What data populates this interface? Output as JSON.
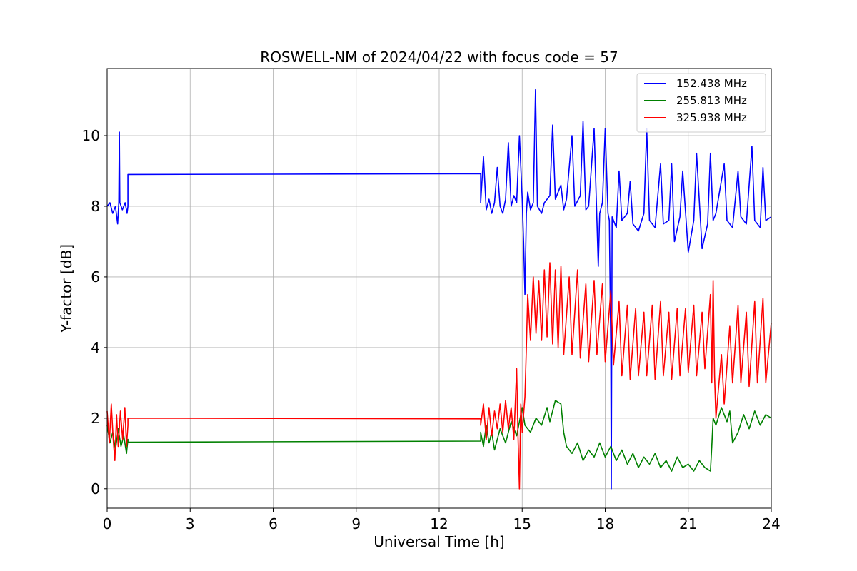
{
  "chart_data": {
    "type": "line",
    "title": "ROSWELL-NM of 2024/04/22 with focus code = 57",
    "xlabel": "Universal Time [h]",
    "ylabel": "Y-factor [dB]",
    "xlim": [
      0,
      24
    ],
    "ylim": [
      -0.55,
      11.9
    ],
    "xticks": [
      0,
      3,
      6,
      9,
      12,
      15,
      18,
      21,
      24
    ],
    "xtick_labels": [
      "0",
      "3",
      "6",
      "9",
      "12",
      "15",
      "18",
      "21",
      "24"
    ],
    "yticks": [
      0,
      2,
      4,
      6,
      8,
      10
    ],
    "ytick_labels": [
      "0",
      "2",
      "4",
      "6",
      "8",
      "10"
    ],
    "grid": true,
    "legend_position": "top-right",
    "series": [
      {
        "name": "152.438 MHz",
        "color": "#0000ff",
        "points": [
          [
            0.0,
            8.0
          ],
          [
            0.1,
            8.1
          ],
          [
            0.2,
            7.8
          ],
          [
            0.3,
            8.0
          ],
          [
            0.38,
            7.5
          ],
          [
            0.42,
            8.1
          ],
          [
            0.44,
            10.1
          ],
          [
            0.46,
            8.1
          ],
          [
            0.55,
            7.9
          ],
          [
            0.65,
            8.1
          ],
          [
            0.72,
            7.8
          ],
          [
            0.75,
            8.0
          ],
          [
            0.75,
            8.9
          ],
          [
            13.5,
            8.92
          ],
          [
            13.5,
            8.1
          ],
          [
            13.6,
            9.4
          ],
          [
            13.7,
            7.9
          ],
          [
            13.8,
            8.2
          ],
          [
            13.9,
            7.8
          ],
          [
            14.0,
            8.1
          ],
          [
            14.1,
            9.1
          ],
          [
            14.2,
            8.0
          ],
          [
            14.3,
            7.8
          ],
          [
            14.4,
            8.2
          ],
          [
            14.5,
            9.8
          ],
          [
            14.6,
            8.0
          ],
          [
            14.7,
            8.3
          ],
          [
            14.8,
            8.1
          ],
          [
            14.9,
            10.0
          ],
          [
            15.0,
            8.2
          ],
          [
            15.05,
            7.0
          ],
          [
            15.1,
            5.5
          ],
          [
            15.15,
            7.8
          ],
          [
            15.2,
            8.4
          ],
          [
            15.3,
            7.9
          ],
          [
            15.4,
            8.1
          ],
          [
            15.48,
            11.3
          ],
          [
            15.55,
            8.0
          ],
          [
            15.7,
            7.8
          ],
          [
            15.8,
            8.1
          ],
          [
            16.0,
            8.3
          ],
          [
            16.1,
            10.3
          ],
          [
            16.2,
            8.2
          ],
          [
            16.4,
            8.6
          ],
          [
            16.5,
            7.9
          ],
          [
            16.6,
            8.2
          ],
          [
            16.8,
            10.0
          ],
          [
            16.9,
            8.0
          ],
          [
            17.1,
            8.3
          ],
          [
            17.2,
            10.4
          ],
          [
            17.3,
            7.9
          ],
          [
            17.4,
            8.0
          ],
          [
            17.6,
            10.2
          ],
          [
            17.7,
            7.6
          ],
          [
            17.75,
            6.3
          ],
          [
            17.8,
            7.8
          ],
          [
            17.9,
            8.1
          ],
          [
            18.0,
            10.2
          ],
          [
            18.1,
            7.8
          ],
          [
            18.15,
            7.6
          ],
          [
            18.2,
            4.0
          ],
          [
            18.22,
            0.0
          ],
          [
            18.25,
            7.7
          ],
          [
            18.4,
            7.4
          ],
          [
            18.5,
            9.0
          ],
          [
            18.6,
            7.6
          ],
          [
            18.8,
            7.8
          ],
          [
            18.9,
            8.7
          ],
          [
            19.0,
            7.5
          ],
          [
            19.2,
            7.3
          ],
          [
            19.4,
            7.8
          ],
          [
            19.5,
            10.2
          ],
          [
            19.6,
            7.6
          ],
          [
            19.8,
            7.4
          ],
          [
            20.0,
            9.2
          ],
          [
            20.1,
            7.5
          ],
          [
            20.3,
            7.6
          ],
          [
            20.4,
            9.2
          ],
          [
            20.5,
            7.0
          ],
          [
            20.7,
            7.7
          ],
          [
            20.8,
            9.0
          ],
          [
            21.0,
            6.7
          ],
          [
            21.2,
            7.6
          ],
          [
            21.3,
            9.5
          ],
          [
            21.5,
            6.8
          ],
          [
            21.7,
            7.5
          ],
          [
            21.8,
            9.5
          ],
          [
            21.9,
            7.6
          ],
          [
            22.0,
            7.8
          ],
          [
            22.3,
            9.2
          ],
          [
            22.4,
            7.6
          ],
          [
            22.6,
            7.4
          ],
          [
            22.8,
            9.0
          ],
          [
            22.9,
            7.7
          ],
          [
            23.1,
            7.5
          ],
          [
            23.3,
            9.7
          ],
          [
            23.4,
            7.6
          ],
          [
            23.6,
            7.4
          ],
          [
            23.7,
            9.1
          ],
          [
            23.8,
            7.6
          ],
          [
            24.0,
            7.7
          ]
        ]
      },
      {
        "name": "255.813 MHz",
        "color": "#008000",
        "points": [
          [
            0.0,
            1.8
          ],
          [
            0.1,
            1.3
          ],
          [
            0.2,
            1.6
          ],
          [
            0.3,
            1.1
          ],
          [
            0.4,
            1.7
          ],
          [
            0.5,
            1.2
          ],
          [
            0.6,
            1.5
          ],
          [
            0.7,
            1.0
          ],
          [
            0.75,
            1.4
          ],
          [
            0.75,
            1.32
          ],
          [
            13.5,
            1.35
          ],
          [
            13.5,
            1.6
          ],
          [
            13.6,
            1.2
          ],
          [
            13.7,
            1.8
          ],
          [
            13.8,
            1.3
          ],
          [
            13.9,
            1.6
          ],
          [
            14.0,
            1.1
          ],
          [
            14.2,
            1.7
          ],
          [
            14.4,
            1.3
          ],
          [
            14.6,
            1.9
          ],
          [
            14.8,
            1.5
          ],
          [
            15.0,
            2.3
          ],
          [
            15.1,
            1.8
          ],
          [
            15.3,
            1.6
          ],
          [
            15.5,
            2.0
          ],
          [
            15.7,
            1.8
          ],
          [
            15.9,
            2.3
          ],
          [
            16.0,
            1.9
          ],
          [
            16.2,
            2.5
          ],
          [
            16.4,
            2.4
          ],
          [
            16.5,
            1.6
          ],
          [
            16.6,
            1.2
          ],
          [
            16.8,
            1.0
          ],
          [
            17.0,
            1.3
          ],
          [
            17.2,
            0.8
          ],
          [
            17.4,
            1.1
          ],
          [
            17.6,
            0.9
          ],
          [
            17.8,
            1.3
          ],
          [
            18.0,
            0.9
          ],
          [
            18.2,
            1.2
          ],
          [
            18.4,
            0.8
          ],
          [
            18.6,
            1.1
          ],
          [
            18.8,
            0.7
          ],
          [
            19.0,
            1.0
          ],
          [
            19.2,
            0.6
          ],
          [
            19.4,
            0.9
          ],
          [
            19.6,
            0.7
          ],
          [
            19.8,
            1.0
          ],
          [
            20.0,
            0.6
          ],
          [
            20.2,
            0.8
          ],
          [
            20.4,
            0.5
          ],
          [
            20.6,
            0.9
          ],
          [
            20.8,
            0.6
          ],
          [
            21.0,
            0.7
          ],
          [
            21.2,
            0.5
          ],
          [
            21.4,
            0.8
          ],
          [
            21.6,
            0.6
          ],
          [
            21.8,
            0.5
          ],
          [
            21.85,
            1.2
          ],
          [
            21.9,
            2.0
          ],
          [
            22.0,
            1.8
          ],
          [
            22.2,
            2.3
          ],
          [
            22.4,
            1.9
          ],
          [
            22.5,
            2.2
          ],
          [
            22.6,
            1.3
          ],
          [
            22.8,
            1.6
          ],
          [
            23.0,
            2.1
          ],
          [
            23.2,
            1.7
          ],
          [
            23.4,
            2.2
          ],
          [
            23.6,
            1.8
          ],
          [
            23.8,
            2.1
          ],
          [
            24.0,
            2.0
          ]
        ]
      },
      {
        "name": "325.938 MHz",
        "color": "#ff0000",
        "points": [
          [
            0.0,
            2.2
          ],
          [
            0.08,
            1.3
          ],
          [
            0.15,
            2.4
          ],
          [
            0.22,
            1.4
          ],
          [
            0.28,
            0.8
          ],
          [
            0.34,
            2.1
          ],
          [
            0.4,
            1.2
          ],
          [
            0.48,
            2.2
          ],
          [
            0.56,
            1.4
          ],
          [
            0.64,
            2.3
          ],
          [
            0.7,
            1.2
          ],
          [
            0.75,
            1.8
          ],
          [
            0.75,
            2.0
          ],
          [
            13.5,
            1.98
          ],
          [
            13.5,
            1.8
          ],
          [
            13.6,
            2.4
          ],
          [
            13.7,
            1.4
          ],
          [
            13.8,
            2.3
          ],
          [
            13.9,
            1.5
          ],
          [
            14.0,
            2.2
          ],
          [
            14.1,
            1.7
          ],
          [
            14.2,
            2.4
          ],
          [
            14.3,
            1.6
          ],
          [
            14.4,
            2.5
          ],
          [
            14.5,
            1.7
          ],
          [
            14.6,
            2.3
          ],
          [
            14.7,
            1.4
          ],
          [
            14.8,
            3.4
          ],
          [
            14.85,
            1.5
          ],
          [
            14.9,
            0.0
          ],
          [
            14.95,
            2.4
          ],
          [
            15.0,
            1.6
          ],
          [
            15.1,
            2.6
          ],
          [
            15.15,
            4.0
          ],
          [
            15.2,
            5.5
          ],
          [
            15.3,
            4.2
          ],
          [
            15.4,
            6.0
          ],
          [
            15.5,
            4.4
          ],
          [
            15.6,
            5.9
          ],
          [
            15.7,
            4.2
          ],
          [
            15.8,
            6.2
          ],
          [
            15.9,
            4.3
          ],
          [
            16.0,
            6.4
          ],
          [
            16.1,
            4.1
          ],
          [
            16.2,
            6.2
          ],
          [
            16.3,
            4.0
          ],
          [
            16.4,
            6.3
          ],
          [
            16.5,
            3.8
          ],
          [
            16.7,
            6.0
          ],
          [
            16.8,
            3.8
          ],
          [
            17.0,
            6.2
          ],
          [
            17.1,
            3.7
          ],
          [
            17.3,
            5.8
          ],
          [
            17.4,
            3.6
          ],
          [
            17.6,
            5.9
          ],
          [
            17.7,
            3.8
          ],
          [
            17.9,
            5.8
          ],
          [
            18.0,
            3.6
          ],
          [
            18.2,
            5.6
          ],
          [
            18.3,
            3.5
          ],
          [
            18.5,
            5.3
          ],
          [
            18.6,
            3.2
          ],
          [
            18.8,
            5.2
          ],
          [
            18.9,
            3.1
          ],
          [
            19.1,
            5.1
          ],
          [
            19.2,
            3.2
          ],
          [
            19.4,
            5.0
          ],
          [
            19.5,
            3.2
          ],
          [
            19.7,
            5.2
          ],
          [
            19.8,
            3.1
          ],
          [
            20.0,
            5.3
          ],
          [
            20.1,
            3.2
          ],
          [
            20.3,
            5.0
          ],
          [
            20.4,
            3.1
          ],
          [
            20.6,
            5.1
          ],
          [
            20.7,
            3.2
          ],
          [
            20.9,
            5.1
          ],
          [
            21.0,
            3.3
          ],
          [
            21.2,
            5.2
          ],
          [
            21.3,
            3.2
          ],
          [
            21.5,
            5.0
          ],
          [
            21.6,
            3.4
          ],
          [
            21.8,
            5.5
          ],
          [
            21.85,
            3.0
          ],
          [
            21.9,
            5.9
          ],
          [
            21.95,
            3.2
          ],
          [
            22.0,
            2.0
          ],
          [
            22.2,
            3.8
          ],
          [
            22.3,
            2.4
          ],
          [
            22.5,
            4.6
          ],
          [
            22.6,
            3.0
          ],
          [
            22.8,
            5.2
          ],
          [
            22.9,
            3.0
          ],
          [
            23.1,
            5.0
          ],
          [
            23.2,
            2.9
          ],
          [
            23.4,
            5.3
          ],
          [
            23.5,
            3.0
          ],
          [
            23.7,
            5.4
          ],
          [
            23.8,
            3.0
          ],
          [
            24.0,
            4.7
          ]
        ]
      }
    ]
  }
}
